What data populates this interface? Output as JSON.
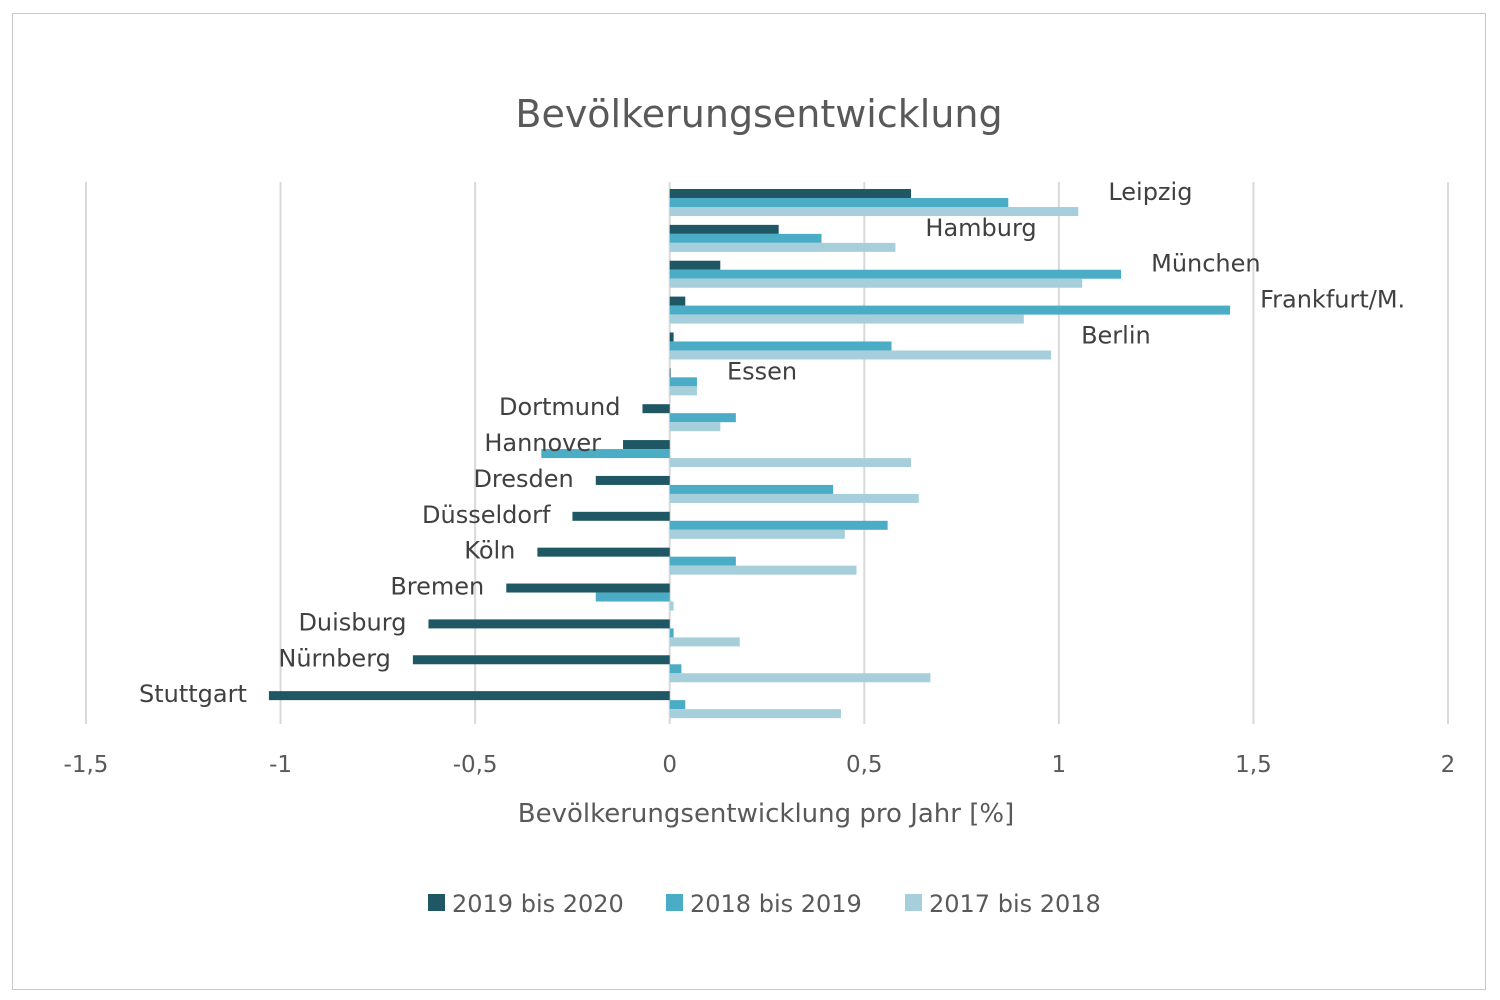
{
  "chart_data": {
    "type": "bar",
    "orientation": "horizontal",
    "title": "Bevölkerungsentwicklung",
    "xlabel": "Bevölkerungsentwicklung pro Jahr [%]",
    "ylabel": "",
    "xlim": [
      -1.5,
      2
    ],
    "x_ticks": [
      -1.5,
      -1,
      -0.5,
      0,
      0.5,
      1,
      1.5,
      2
    ],
    "x_tick_labels": [
      "-1,5",
      "-1",
      "-0,5",
      "0",
      "0,5",
      "1",
      "1,5",
      "2"
    ],
    "grid": true,
    "legend_position": "bottom",
    "categories": [
      "Leipzig",
      "Hamburg",
      "München",
      "Frankfurt/M.",
      "Berlin",
      "Essen",
      "Dortmund",
      "Hannover",
      "Dresden",
      "Düsseldorf",
      "Köln",
      "Bremen",
      "Duisburg",
      "Nürnberg",
      "Stuttgart"
    ],
    "series": [
      {
        "name": "2019 bis 2020",
        "color": "#1f5864",
        "values": [
          0.62,
          0.28,
          0.13,
          0.04,
          0.01,
          0.0,
          -0.07,
          -0.12,
          -0.19,
          -0.25,
          -0.34,
          -0.42,
          -0.62,
          -0.66,
          -1.03
        ]
      },
      {
        "name": "2018 bis 2019",
        "color": "#4bacc6",
        "values": [
          0.87,
          0.39,
          1.16,
          1.44,
          0.57,
          0.07,
          0.17,
          -0.33,
          0.42,
          0.56,
          0.17,
          -0.19,
          0.01,
          0.03,
          0.04
        ]
      },
      {
        "name": "2017 bis 2018",
        "color": "#a6cfdb",
        "values": [
          1.05,
          0.58,
          1.06,
          0.91,
          0.98,
          0.07,
          0.13,
          0.62,
          0.64,
          0.45,
          0.48,
          0.01,
          0.18,
          0.67,
          0.44
        ]
      }
    ]
  }
}
